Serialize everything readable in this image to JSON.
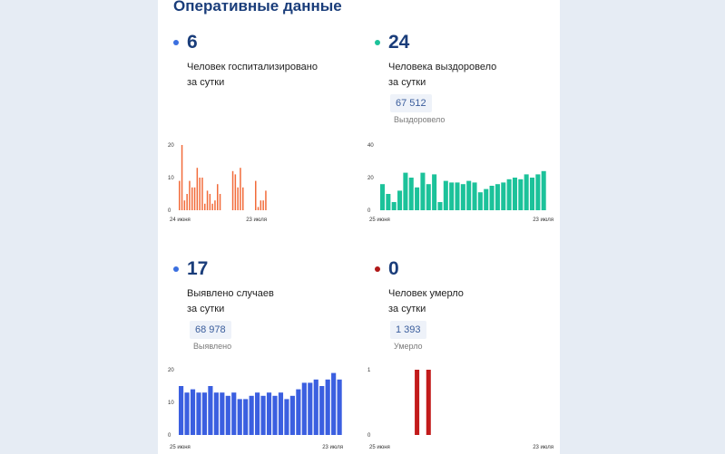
{
  "title": "Оперативные данные",
  "panels": [
    {
      "number": "6",
      "desc1": "Человек госпитализировано",
      "desc2": "за сутки",
      "total": null,
      "total_caption": null,
      "color": "#f26b3a",
      "dot_color": "#3a6fe0"
    },
    {
      "number": "24",
      "desc1": "Человека выздоровело",
      "desc2": "за сутки",
      "total": "67 512",
      "total_caption": "Выздоровело",
      "color": "#1cc29a",
      "dot_color": "#1cc29a"
    },
    {
      "number": "17",
      "desc1": "Выявлено случаев",
      "desc2": "за сутки",
      "total": "68 978",
      "total_caption": "Выявлено",
      "color": "#3b5fe0",
      "dot_color": "#3a6fe0"
    },
    {
      "number": "0",
      "desc1": "Человек умерло",
      "desc2": "за сутки",
      "total": "1 393",
      "total_caption": "Умерло",
      "color": "#c21b1b",
      "dot_color": "#b01818"
    }
  ],
  "chart_data": [
    {
      "type": "bar",
      "series_color": "#f26b3a",
      "ylim": [
        0,
        20
      ],
      "yticks": [
        "20",
        "10",
        "0"
      ],
      "x_start": "24 июня",
      "x_end": "23 июля",
      "values": [
        9,
        20,
        3,
        5,
        9,
        7,
        7,
        13,
        10,
        10,
        2,
        6,
        5,
        2,
        3,
        8,
        5,
        0,
        0,
        0,
        0,
        12,
        11,
        7,
        13,
        7,
        0,
        0,
        0,
        0,
        9,
        1,
        3,
        3,
        6
      ]
    },
    {
      "type": "bar",
      "series_color": "#1cc29a",
      "ylim": [
        0,
        40
      ],
      "yticks": [
        "40",
        "20",
        "0"
      ],
      "x_start": "25 июня",
      "x_end": "23 июля",
      "values": [
        16,
        10,
        5,
        12,
        23,
        20,
        14,
        23,
        16,
        22,
        5,
        18,
        17,
        17,
        16,
        18,
        17,
        11,
        13,
        15,
        16,
        17,
        19,
        20,
        19,
        22,
        20,
        22,
        24
      ]
    },
    {
      "type": "bar",
      "series_color": "#3b5fe0",
      "ylim": [
        0,
        20
      ],
      "yticks": [
        "20",
        "10",
        "0"
      ],
      "x_start": "25 июня",
      "x_end": "23 июля",
      "values": [
        15,
        13,
        14,
        13,
        13,
        15,
        13,
        13,
        12,
        13,
        11,
        11,
        12,
        13,
        12,
        13,
        12,
        13,
        11,
        12,
        14,
        16,
        16,
        17,
        15,
        17,
        19,
        17
      ]
    },
    {
      "type": "bar",
      "series_color": "#c21b1b",
      "ylim": [
        0,
        1
      ],
      "yticks": [
        "1",
        "0"
      ],
      "x_start": "25 июня",
      "x_end": "23 июля",
      "values": [
        0,
        0,
        0,
        0,
        0,
        0,
        1,
        0,
        1,
        0,
        0,
        0,
        0,
        0,
        0,
        0,
        0,
        0,
        0,
        0,
        0,
        0,
        0,
        0,
        0,
        0,
        0,
        0,
        0
      ]
    }
  ]
}
